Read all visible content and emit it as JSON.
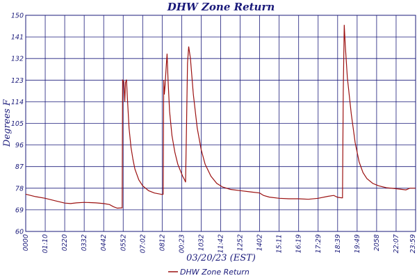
{
  "chart_data": {
    "type": "line",
    "title": "DHW Zone Return",
    "xlabel": "03/20/23 (EST)",
    "ylabel": "Degrees F",
    "ylim": [
      60,
      150
    ],
    "yticks": [
      60,
      69,
      78,
      87,
      96,
      105,
      114,
      123,
      132,
      141,
      150
    ],
    "xticks": [
      "0000",
      "01:10",
      "0220",
      "0332",
      "0442",
      "0552",
      "07:02",
      "0812",
      "00:23",
      "1032",
      "11:42",
      "1252",
      "1402",
      "15:11",
      "16:19",
      "17:29",
      "18:39",
      "19:49",
      "2058",
      "22:07",
      "23:59"
    ],
    "xlim": [
      0,
      20
    ],
    "grid": true,
    "legend_position": "bottom-center",
    "colors": {
      "series": "#9b1010",
      "grid": "#1a1a7a",
      "text": "#1a1a7a"
    },
    "series": [
      {
        "name": "DHW Zone Return",
        "points": [
          [
            0.0,
            75.5
          ],
          [
            0.5,
            74.5
          ],
          [
            1.0,
            73.8
          ],
          [
            1.5,
            72.8
          ],
          [
            2.0,
            71.8
          ],
          [
            2.3,
            71.6
          ],
          [
            2.6,
            71.9
          ],
          [
            3.0,
            72.1
          ],
          [
            3.3,
            72.0
          ],
          [
            3.6,
            71.9
          ],
          [
            4.0,
            71.6
          ],
          [
            4.3,
            71.2
          ],
          [
            4.5,
            70.3
          ],
          [
            4.7,
            69.7
          ],
          [
            4.9,
            69.8
          ],
          [
            4.95,
            69.8
          ],
          [
            4.97,
            123.0
          ],
          [
            5.03,
            122.5
          ],
          [
            5.08,
            114.0
          ],
          [
            5.12,
            122.0
          ],
          [
            5.17,
            123.2
          ],
          [
            5.22,
            115.0
          ],
          [
            5.3,
            103.0
          ],
          [
            5.4,
            95.0
          ],
          [
            5.5,
            90.0
          ],
          [
            5.6,
            86.0
          ],
          [
            5.8,
            81.5
          ],
          [
            6.0,
            79.0
          ],
          [
            6.3,
            77.0
          ],
          [
            6.6,
            76.0
          ],
          [
            7.0,
            75.4
          ],
          [
            7.05,
            75.5
          ],
          [
            7.08,
            123.0
          ],
          [
            7.11,
            117.0
          ],
          [
            7.15,
            121.0
          ],
          [
            7.2,
            128.0
          ],
          [
            7.25,
            134.0
          ],
          [
            7.3,
            123.0
          ],
          [
            7.38,
            110.0
          ],
          [
            7.5,
            100.0
          ],
          [
            7.65,
            93.0
          ],
          [
            7.8,
            88.0
          ],
          [
            7.95,
            85.0
          ],
          [
            8.05,
            83.0
          ],
          [
            8.15,
            81.5
          ],
          [
            8.2,
            80.5
          ],
          [
            8.24,
            99.0
          ],
          [
            8.3,
            130.0
          ],
          [
            8.36,
            137.0
          ],
          [
            8.45,
            132.0
          ],
          [
            8.6,
            117.0
          ],
          [
            8.8,
            103.0
          ],
          [
            9.0,
            94.0
          ],
          [
            9.2,
            88.0
          ],
          [
            9.5,
            83.0
          ],
          [
            9.8,
            80.0
          ],
          [
            10.1,
            78.5
          ],
          [
            10.5,
            77.5
          ],
          [
            11.0,
            77.0
          ],
          [
            11.5,
            76.5
          ],
          [
            12.0,
            76.0
          ],
          [
            12.2,
            75.0
          ],
          [
            12.5,
            74.3
          ],
          [
            13.0,
            73.8
          ],
          [
            13.5,
            73.6
          ],
          [
            14.0,
            73.6
          ],
          [
            14.5,
            73.4
          ],
          [
            15.0,
            73.8
          ],
          [
            15.5,
            74.6
          ],
          [
            15.8,
            75.0
          ],
          [
            16.0,
            74.2
          ],
          [
            16.2,
            74.0
          ],
          [
            16.25,
            74.0
          ],
          [
            16.29,
            118.0
          ],
          [
            16.34,
            146.0
          ],
          [
            16.39,
            138.0
          ],
          [
            16.5,
            124.0
          ],
          [
            16.7,
            109.0
          ],
          [
            16.9,
            97.0
          ],
          [
            17.1,
            89.0
          ],
          [
            17.3,
            84.5
          ],
          [
            17.5,
            82.0
          ],
          [
            17.8,
            80.0
          ],
          [
            18.1,
            79.0
          ],
          [
            18.5,
            78.2
          ],
          [
            19.0,
            77.8
          ],
          [
            19.3,
            77.5
          ],
          [
            19.5,
            77.3
          ],
          [
            19.7,
            78.0
          ],
          [
            20.0,
            78.0
          ]
        ]
      }
    ]
  }
}
